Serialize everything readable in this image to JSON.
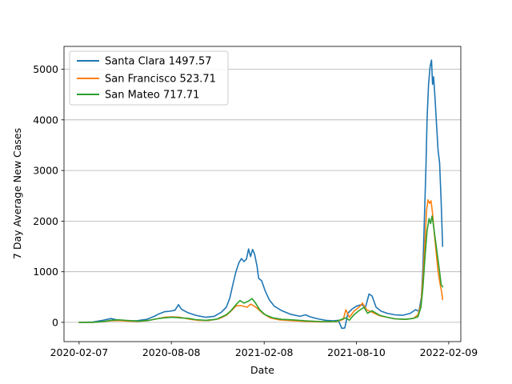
{
  "chart_data": {
    "type": "line",
    "xlabel": "Date",
    "ylabel": "7 Day Average New Cases",
    "xlim": [
      "2020-01-08",
      "2022-03-05"
    ],
    "ylim": [
      -380,
      5450
    ],
    "x_ticks": [
      "2020-02-07",
      "2020-08-08",
      "2021-02-08",
      "2021-08-10",
      "2022-02-09"
    ],
    "y_ticks": [
      0,
      1000,
      2000,
      3000,
      4000,
      5000
    ],
    "grid": "horizontal",
    "legend_position": "upper-left",
    "series": [
      {
        "name": "Santa Clara 1497.57",
        "color": "#1f77b4",
        "points": [
          [
            "2020-02-07",
            0
          ],
          [
            "2020-03-05",
            5
          ],
          [
            "2020-03-25",
            40
          ],
          [
            "2020-04-10",
            75
          ],
          [
            "2020-04-20",
            55
          ],
          [
            "2020-05-10",
            30
          ],
          [
            "2020-05-30",
            30
          ],
          [
            "2020-06-20",
            60
          ],
          [
            "2020-07-05",
            120
          ],
          [
            "2020-07-15",
            170
          ],
          [
            "2020-07-25",
            210
          ],
          [
            "2020-08-05",
            220
          ],
          [
            "2020-08-15",
            240
          ],
          [
            "2020-08-22",
            350
          ],
          [
            "2020-08-28",
            260
          ],
          [
            "2020-09-10",
            190
          ],
          [
            "2020-09-25",
            140
          ],
          [
            "2020-10-15",
            100
          ],
          [
            "2020-11-01",
            120
          ],
          [
            "2020-11-15",
            200
          ],
          [
            "2020-11-25",
            300
          ],
          [
            "2020-12-02",
            480
          ],
          [
            "2020-12-08",
            750
          ],
          [
            "2020-12-14",
            1000
          ],
          [
            "2020-12-20",
            1180
          ],
          [
            "2020-12-25",
            1260
          ],
          [
            "2020-12-30",
            1200
          ],
          [
            "2021-01-04",
            1250
          ],
          [
            "2021-01-08",
            1450
          ],
          [
            "2021-01-12",
            1300
          ],
          [
            "2021-01-16",
            1440
          ],
          [
            "2021-01-20",
            1350
          ],
          [
            "2021-01-25",
            1100
          ],
          [
            "2021-01-28",
            870
          ],
          [
            "2021-02-03",
            820
          ],
          [
            "2021-02-10",
            620
          ],
          [
            "2021-02-18",
            450
          ],
          [
            "2021-02-28",
            320
          ],
          [
            "2021-03-15",
            230
          ],
          [
            "2021-04-01",
            160
          ],
          [
            "2021-04-20",
            120
          ],
          [
            "2021-05-01",
            150
          ],
          [
            "2021-05-10",
            110
          ],
          [
            "2021-05-25",
            70
          ],
          [
            "2021-06-10",
            40
          ],
          [
            "2021-06-25",
            30
          ],
          [
            "2021-07-05",
            40
          ],
          [
            "2021-07-12",
            -120
          ],
          [
            "2021-07-18",
            -110
          ],
          [
            "2021-07-24",
            180
          ],
          [
            "2021-08-01",
            260
          ],
          [
            "2021-08-10",
            320
          ],
          [
            "2021-08-20",
            350
          ],
          [
            "2021-08-28",
            300
          ],
          [
            "2021-09-04",
            560
          ],
          [
            "2021-09-10",
            520
          ],
          [
            "2021-09-18",
            300
          ],
          [
            "2021-09-28",
            220
          ],
          [
            "2021-10-10",
            180
          ],
          [
            "2021-10-25",
            150
          ],
          [
            "2021-11-10",
            140
          ],
          [
            "2021-11-25",
            180
          ],
          [
            "2021-12-05",
            250
          ],
          [
            "2021-12-12",
            220
          ],
          [
            "2021-12-17",
            500
          ],
          [
            "2021-12-20",
            1100
          ],
          [
            "2021-12-23",
            2100
          ],
          [
            "2021-12-26",
            3100
          ],
          [
            "2021-12-28",
            4000
          ],
          [
            "2021-12-31",
            4700
          ],
          [
            "2022-01-03",
            5050
          ],
          [
            "2022-01-06",
            5180
          ],
          [
            "2022-01-08",
            4700
          ],
          [
            "2022-01-10",
            4850
          ],
          [
            "2022-01-13",
            4400
          ],
          [
            "2022-01-16",
            3900
          ],
          [
            "2022-01-19",
            3400
          ],
          [
            "2022-01-22",
            3150
          ],
          [
            "2022-01-25",
            2400
          ],
          [
            "2022-01-28",
            1500
          ]
        ]
      },
      {
        "name": "San Francisco 523.71",
        "color": "#ff7f0e",
        "points": [
          [
            "2020-02-07",
            0
          ],
          [
            "2020-03-05",
            0
          ],
          [
            "2020-03-25",
            15
          ],
          [
            "2020-04-10",
            30
          ],
          [
            "2020-04-25",
            35
          ],
          [
            "2020-05-15",
            25
          ],
          [
            "2020-06-01",
            20
          ],
          [
            "2020-06-20",
            30
          ],
          [
            "2020-07-10",
            70
          ],
          [
            "2020-07-25",
            100
          ],
          [
            "2020-08-10",
            110
          ],
          [
            "2020-08-25",
            100
          ],
          [
            "2020-09-15",
            60
          ],
          [
            "2020-10-01",
            40
          ],
          [
            "2020-10-20",
            35
          ],
          [
            "2020-11-10",
            70
          ],
          [
            "2020-11-25",
            140
          ],
          [
            "2020-12-05",
            230
          ],
          [
            "2020-12-15",
            330
          ],
          [
            "2020-12-25",
            330
          ],
          [
            "2021-01-05",
            300
          ],
          [
            "2021-01-12",
            360
          ],
          [
            "2021-01-18",
            330
          ],
          [
            "2021-01-25",
            280
          ],
          [
            "2021-02-05",
            180
          ],
          [
            "2021-02-20",
            90
          ],
          [
            "2021-03-10",
            50
          ],
          [
            "2021-04-01",
            35
          ],
          [
            "2021-05-01",
            20
          ],
          [
            "2021-06-01",
            10
          ],
          [
            "2021-07-01",
            15
          ],
          [
            "2021-07-15",
            60
          ],
          [
            "2021-07-20",
            250
          ],
          [
            "2021-07-27",
            100
          ],
          [
            "2021-08-05",
            220
          ],
          [
            "2021-08-15",
            300
          ],
          [
            "2021-08-22",
            380
          ],
          [
            "2021-08-30",
            250
          ],
          [
            "2021-09-10",
            200
          ],
          [
            "2021-09-25",
            130
          ],
          [
            "2021-10-10",
            100
          ],
          [
            "2021-10-25",
            70
          ],
          [
            "2021-11-15",
            60
          ],
          [
            "2021-12-01",
            80
          ],
          [
            "2021-12-10",
            150
          ],
          [
            "2021-12-16",
            350
          ],
          [
            "2021-12-20",
            900
          ],
          [
            "2021-12-24",
            1600
          ],
          [
            "2021-12-27",
            2200
          ],
          [
            "2021-12-30",
            2420
          ],
          [
            "2022-01-02",
            2350
          ],
          [
            "2022-01-05",
            2400
          ],
          [
            "2022-01-08",
            2150
          ],
          [
            "2022-01-11",
            1800
          ],
          [
            "2022-01-15",
            1400
          ],
          [
            "2022-01-19",
            1000
          ],
          [
            "2022-01-23",
            750
          ],
          [
            "2022-01-26",
            600
          ],
          [
            "2022-01-28",
            450
          ]
        ]
      },
      {
        "name": "San Mateo 717.71",
        "color": "#2ca02c",
        "points": [
          [
            "2020-02-07",
            0
          ],
          [
            "2020-03-05",
            0
          ],
          [
            "2020-03-25",
            15
          ],
          [
            "2020-04-10",
            40
          ],
          [
            "2020-04-25",
            50
          ],
          [
            "2020-05-15",
            35
          ],
          [
            "2020-06-05",
            25
          ],
          [
            "2020-06-25",
            40
          ],
          [
            "2020-07-10",
            70
          ],
          [
            "2020-07-25",
            90
          ],
          [
            "2020-08-10",
            100
          ],
          [
            "2020-08-25",
            90
          ],
          [
            "2020-09-10",
            80
          ],
          [
            "2020-09-25",
            55
          ],
          [
            "2020-10-15",
            40
          ],
          [
            "2020-11-05",
            60
          ],
          [
            "2020-11-25",
            150
          ],
          [
            "2020-12-05",
            240
          ],
          [
            "2020-12-15",
            360
          ],
          [
            "2020-12-22",
            430
          ],
          [
            "2020-12-30",
            380
          ],
          [
            "2021-01-08",
            420
          ],
          [
            "2021-01-15",
            470
          ],
          [
            "2021-01-22",
            380
          ],
          [
            "2021-01-30",
            250
          ],
          [
            "2021-02-10",
            150
          ],
          [
            "2021-02-25",
            90
          ],
          [
            "2021-03-15",
            60
          ],
          [
            "2021-04-05",
            50
          ],
          [
            "2021-05-01",
            30
          ],
          [
            "2021-06-01",
            15
          ],
          [
            "2021-07-01",
            20
          ],
          [
            "2021-07-20",
            90
          ],
          [
            "2021-07-27",
            40
          ],
          [
            "2021-08-05",
            150
          ],
          [
            "2021-08-15",
            230
          ],
          [
            "2021-08-25",
            300
          ],
          [
            "2021-09-01",
            180
          ],
          [
            "2021-09-10",
            230
          ],
          [
            "2021-09-25",
            140
          ],
          [
            "2021-10-10",
            100
          ],
          [
            "2021-10-25",
            70
          ],
          [
            "2021-11-15",
            60
          ],
          [
            "2021-12-01",
            80
          ],
          [
            "2021-12-10",
            110
          ],
          [
            "2021-12-16",
            300
          ],
          [
            "2021-12-20",
            700
          ],
          [
            "2021-12-24",
            1300
          ],
          [
            "2021-12-28",
            1800
          ],
          [
            "2022-01-01",
            2050
          ],
          [
            "2022-01-04",
            1950
          ],
          [
            "2022-01-07",
            2100
          ],
          [
            "2022-01-10",
            1900
          ],
          [
            "2022-01-14",
            1600
          ],
          [
            "2022-01-18",
            1300
          ],
          [
            "2022-01-22",
            1000
          ],
          [
            "2022-01-25",
            750
          ],
          [
            "2022-01-28",
            700
          ]
        ]
      }
    ]
  }
}
